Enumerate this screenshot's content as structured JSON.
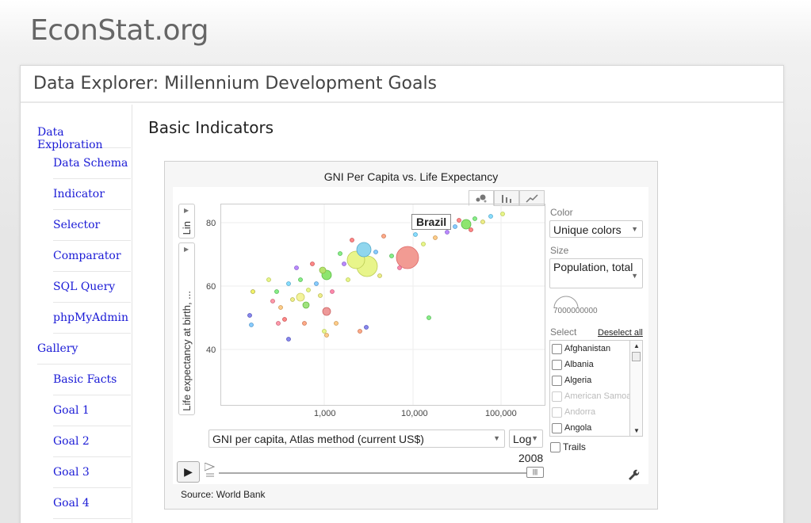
{
  "site": {
    "title": "EconStat.org"
  },
  "page": {
    "title": "Data Explorer: Millennium Development Goals",
    "section_title": "Basic Indicators"
  },
  "sidebar": {
    "items": [
      {
        "label": "Data Exploration",
        "level": 0
      },
      {
        "label": "Data Schema",
        "level": 1
      },
      {
        "label": "Indicator",
        "level": 1
      },
      {
        "label": "Selector",
        "level": 1
      },
      {
        "label": "Comparator",
        "level": 1
      },
      {
        "label": "SQL Query",
        "level": 1
      },
      {
        "label": "phpMyAdmin",
        "level": 1
      },
      {
        "label": "Gallery",
        "level": 0
      },
      {
        "label": "Basic Facts",
        "level": 1
      },
      {
        "label": "Goal 1",
        "level": 1
      },
      {
        "label": "Goal 2",
        "level": 1
      },
      {
        "label": "Goal 3",
        "level": 1
      },
      {
        "label": "Goal 4",
        "level": 1
      }
    ]
  },
  "chart": {
    "title": "GNI Per Capita vs. Life Expectancy",
    "y_axis_selector": "Life expectancy at birth, ...",
    "y_scale_selector": "Lin",
    "x_axis_selector": "GNI per capita, Atlas method (current US$)",
    "x_scale_selector": "Log",
    "x_ticks": [
      "1,000",
      "10,000",
      "100,000"
    ],
    "y_ticks": [
      "80",
      "60",
      "40"
    ],
    "highlight_label": "Brazil",
    "color_label": "Color",
    "color_value": "Unique colors",
    "size_label": "Size",
    "size_value": "Population, total",
    "size_legend_value": "7000000000",
    "select_label": "Select",
    "deselect_label": "Deselect all",
    "countries": [
      {
        "name": "Afghanistan",
        "enabled": true
      },
      {
        "name": "Albania",
        "enabled": true
      },
      {
        "name": "Algeria",
        "enabled": true
      },
      {
        "name": "American Samoa",
        "enabled": false
      },
      {
        "name": "Andorra",
        "enabled": false
      },
      {
        "name": "Angola",
        "enabled": true
      }
    ],
    "trails_label": "Trails",
    "year": "2008",
    "source": "Source: World Bank",
    "play_icon": "play-icon",
    "settings_icon": "wrench-icon"
  }
}
